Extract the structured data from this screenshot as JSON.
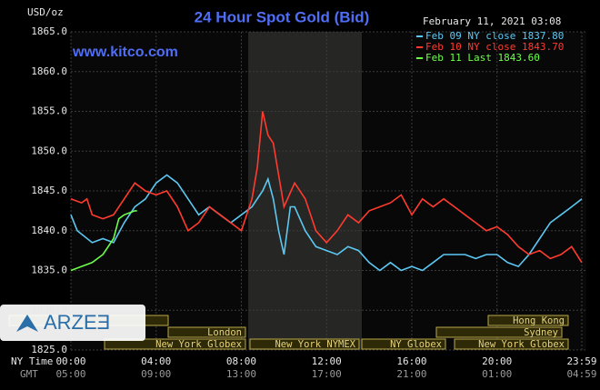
{
  "chart_data": {
    "type": "line",
    "title": "24 Hour Spot Gold (Bid)",
    "unit_label": "USD/oz",
    "timestamp": "February 11, 2021 03:08",
    "site": "www.kitco.com",
    "watermark": "ARZEƎ",
    "x_row_labels": [
      "NY Time",
      "GMT"
    ],
    "xlim": [
      0,
      23.98
    ],
    "xticks": [
      {
        "value": 0,
        "label": "00:00"
      },
      {
        "value": 4,
        "label": "04:00"
      },
      {
        "value": 8,
        "label": "08:00"
      },
      {
        "value": 12,
        "label": "12:00"
      },
      {
        "value": 16,
        "label": "16:00"
      },
      {
        "value": 20,
        "label": "20:00"
      },
      {
        "value": 23.98,
        "label": "23:59"
      }
    ],
    "gmt_ticks": [
      "05:00",
      "09:00",
      "13:00",
      "17:00",
      "21:00",
      "01:00",
      "04:59"
    ],
    "ylim": [
      1825,
      1865
    ],
    "yticks": [
      {
        "value": 1825,
        "label": "1825.0"
      },
      {
        "value": 1830,
        "label": "1830.0"
      },
      {
        "value": 1835,
        "label": "1835.0"
      },
      {
        "value": 1840,
        "label": "1840.0"
      },
      {
        "value": 1845,
        "label": "1845.0"
      },
      {
        "value": 1850,
        "label": "1850.0"
      },
      {
        "value": 1855,
        "label": "1855.0"
      },
      {
        "value": 1860,
        "label": "1860.0"
      },
      {
        "value": 1865,
        "label": "1865.0"
      }
    ],
    "grid": true,
    "sessions": [
      "Hong Kong",
      "Sydney",
      "London",
      "New York Globex",
      "New York NYMEX",
      "NY Globex",
      "New York Globex"
    ],
    "series": [
      {
        "name": "Feb 09 NY close 1837.80",
        "color": "#5cc8f2",
        "x": [
          0,
          0.3,
          1,
          1.5,
          2,
          2.5,
          3,
          3.5,
          4,
          4.5,
          5,
          5.5,
          6,
          6.5,
          7,
          7.5,
          8,
          8.5,
          9,
          9.25,
          9.5,
          9.75,
          10,
          10.3,
          10.5,
          11,
          11.5,
          12,
          12.5,
          13,
          13.5,
          14,
          14.5,
          15,
          15.5,
          16,
          16.5,
          17,
          17.5,
          18,
          18.5,
          19,
          19.5,
          20,
          20.5,
          21,
          21.5,
          22,
          22.5,
          23,
          23.5,
          23.98
        ],
        "values": [
          1842,
          1840,
          1838.5,
          1839,
          1838.5,
          1841,
          1843,
          1844,
          1846,
          1847,
          1846,
          1844,
          1842,
          1843,
          1842,
          1841,
          1842,
          1843,
          1845,
          1846.5,
          1844,
          1840,
          1837,
          1843,
          1843,
          1840,
          1838,
          1837.5,
          1837,
          1838,
          1837.5,
          1836,
          1835,
          1836,
          1835,
          1835.5,
          1835,
          1836,
          1837,
          1837,
          1837,
          1836.5,
          1837,
          1837,
          1836,
          1835.5,
          1837,
          1839,
          1841,
          1842,
          1843,
          1844
        ]
      },
      {
        "name": "Feb 10 NY close 1843.70",
        "color": "#ff3b2f",
        "x": [
          0,
          0.5,
          0.75,
          1,
          1.5,
          2,
          2.5,
          3,
          3.5,
          4,
          4.5,
          5,
          5.5,
          6,
          6.5,
          7,
          7.5,
          8,
          8.5,
          8.75,
          9,
          9.25,
          9.5,
          9.75,
          10,
          10.5,
          11,
          11.5,
          12,
          12.5,
          13,
          13.5,
          14,
          14.5,
          15,
          15.5,
          16,
          16.5,
          17,
          17.5,
          18,
          18.5,
          19,
          19.5,
          20,
          20.5,
          21,
          21.5,
          22,
          22.5,
          23,
          23.5,
          23.98
        ],
        "values": [
          1844,
          1843.5,
          1844,
          1842,
          1841.5,
          1842,
          1844,
          1846,
          1845,
          1844.5,
          1845,
          1843,
          1840,
          1841,
          1843,
          1842,
          1841,
          1840,
          1844,
          1848,
          1855,
          1852,
          1851,
          1847,
          1843,
          1846,
          1844,
          1840,
          1838.5,
          1840,
          1842,
          1841,
          1842.5,
          1843,
          1843.5,
          1844.5,
          1842,
          1844,
          1843,
          1844,
          1843,
          1842,
          1841,
          1840,
          1840.5,
          1839.5,
          1838,
          1837,
          1837.5,
          1836.5,
          1837,
          1838,
          1836
        ]
      },
      {
        "name": "Feb 11 Last 1843.60",
        "color": "#6cff4a",
        "x": [
          0,
          0.5,
          1,
          1.5,
          2,
          2.25,
          2.5,
          3,
          3.1
        ],
        "values": [
          1835,
          1835.5,
          1836,
          1837,
          1839,
          1841.5,
          1842,
          1842.5,
          1842.5
        ]
      }
    ]
  }
}
